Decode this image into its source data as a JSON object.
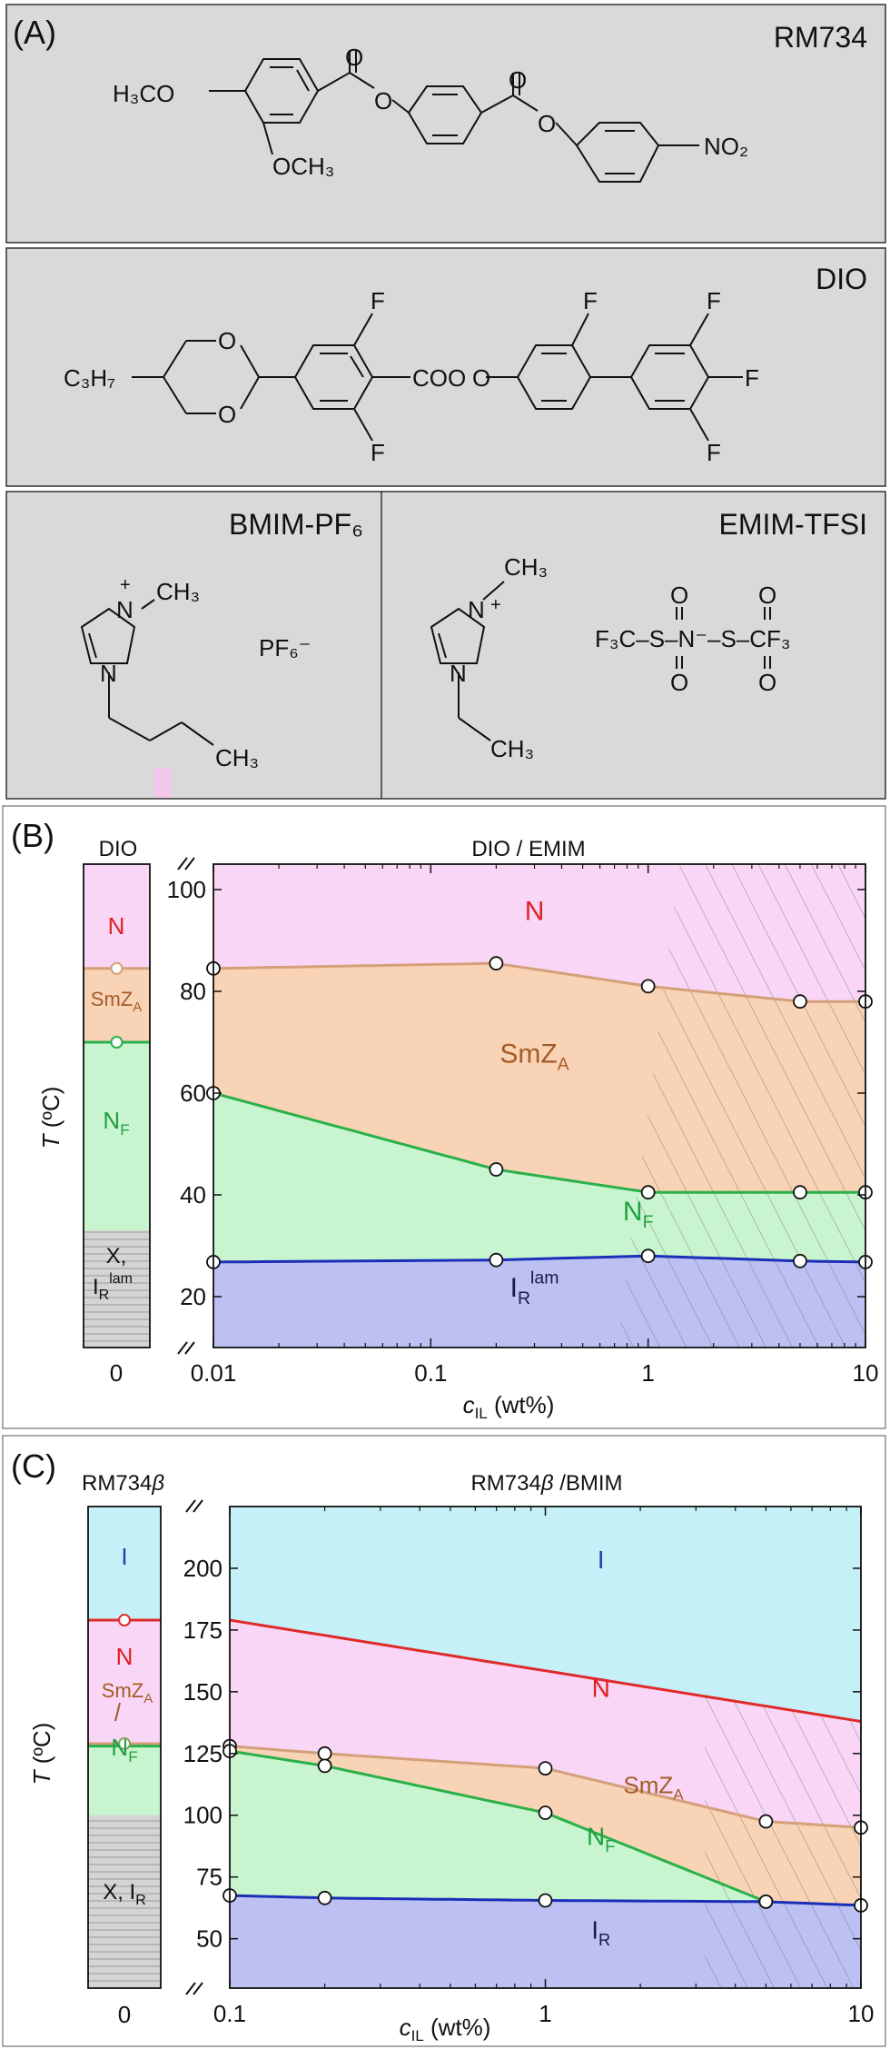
{
  "panelA": {
    "label": "(A)",
    "rm734": {
      "title": "RM734",
      "h3co": "H₃CO",
      "och3": "OCH₃",
      "o": "O",
      "no2": "NO₂"
    },
    "dio": {
      "title": "DIO",
      "c3h7": "C₃H₇",
      "o": "O",
      "f": "F",
      "coo": "COO"
    },
    "bmim": {
      "title": "BMIM-PF₆",
      "ch3": "CH₃",
      "n_plus": "N",
      "n": "N",
      "plus": "+",
      "pf6": "PF₆⁻"
    },
    "emim": {
      "title": "EMIM-TFSI",
      "ch3": "CH₃",
      "n_plus": "N",
      "n": "N",
      "plus": "+",
      "anion_left": "F₃C–S–N⁻–S–CF₃",
      "o": "O",
      "s": "S"
    }
  },
  "panelB": {
    "label": "(B)",
    "left_title": "DIO",
    "right_title": "DIO / EMIM",
    "ylabel": "T (°C)",
    "xlabel": "c_IL (wt%)",
    "left_x_tick": "0",
    "pure_phases": [
      "N",
      "SmZ_A",
      "N_F",
      "X, I_R^lam"
    ],
    "colors": {
      "N": "#f9d6f5",
      "SmZA": "#f9d3b5",
      "NF": "#c8f5cf",
      "IR": "#bcc0f3",
      "X": "#d8d8d8",
      "N_label": "#e02020",
      "SmZA_label": "#a35c28",
      "NF_label": "#20a040",
      "IR_label": "#1a1a4a"
    }
  },
  "panelC": {
    "label": "(C)",
    "left_title": "RM734β",
    "right_title": "RM734β /BMIM",
    "ylabel": "T (°C)",
    "xlabel": "c_IL (wt%)",
    "left_x_tick": "0",
    "pure_phases": [
      "I",
      "N",
      "SmZ_A",
      "N_F",
      "X, I_R"
    ],
    "colors": {
      "I": "#c5f0f8",
      "N": "#f9d6f5",
      "SmZA": "#f9d3b5",
      "NF": "#c8f5cf",
      "IR": "#bcc0f3",
      "X": "#d8d8d8",
      "I_label": "#2040b0",
      "N_label": "#e02020",
      "SmZA_label": "#a35c28",
      "NF_label": "#20a040",
      "IR_label": "#1a1a4a"
    }
  },
  "chart_data": [
    {
      "type": "area",
      "panel": "B",
      "x_scale": "log",
      "xlim": [
        0.01,
        10
      ],
      "ylim": [
        10,
        105
      ],
      "yticks": [
        20,
        40,
        60,
        80,
        100
      ],
      "xticks": [
        "0.01",
        "0.1",
        "1",
        "10"
      ],
      "xlabel": "c_IL (wt%)",
      "ylabel": "T (°C)",
      "pure_DIO": {
        "N_SmZA": 84.5,
        "SmZA_NF": 70,
        "NF_X": 33
      },
      "series": [
        {
          "name": "N–SmZ_A",
          "color": "#d4a07a",
          "x": [
            0.01,
            0.2,
            1,
            5,
            10
          ],
          "y": [
            84.5,
            85.5,
            81,
            78,
            78
          ]
        },
        {
          "name": "SmZ_A–N_F",
          "color": "#2bb04a",
          "x": [
            0.01,
            0.2,
            1,
            5,
            10
          ],
          "y": [
            60,
            45,
            40.5,
            40.5,
            40.5
          ]
        },
        {
          "name": "N_F–I_R^lam",
          "color": "#1a2fb8",
          "x": [
            0.01,
            0.2,
            1,
            5,
            10
          ],
          "y": [
            26.8,
            27.2,
            28,
            27,
            26.8
          ]
        }
      ],
      "phase_labels": [
        {
          "text": "N",
          "x": 0.3,
          "y": 94
        },
        {
          "text": "SmZ_A",
          "x": 0.3,
          "y": 66
        },
        {
          "text": "N_F",
          "x": 0.9,
          "y": 35
        },
        {
          "text": "I_R^lam",
          "x": 0.3,
          "y": 20
        }
      ]
    },
    {
      "type": "area",
      "panel": "C",
      "x_scale": "log",
      "xlim": [
        0.1,
        10
      ],
      "ylim": [
        30,
        225
      ],
      "yticks": [
        50,
        75,
        100,
        125,
        150,
        175,
        200
      ],
      "xticks": [
        "0.1",
        "1",
        "10"
      ],
      "xlabel": "c_IL (wt%)",
      "ylabel": "T (°C)",
      "pure_RM734beta": {
        "I_N": 179,
        "N_SmZA": 129,
        "SmZA_NF": 128,
        "NF_X": 100
      },
      "series": [
        {
          "name": "I–N",
          "color": "#e02a2a",
          "x": [
            0.1,
            10
          ],
          "y": [
            179,
            138
          ]
        },
        {
          "name": "N–SmZ_A",
          "color": "#d4a07a",
          "x": [
            0.1,
            0.2,
            1,
            5,
            10
          ],
          "y": [
            128,
            125,
            119,
            97.5,
            95
          ]
        },
        {
          "name": "SmZ_A–N_F",
          "color": "#2bb04a",
          "x": [
            0.1,
            0.2,
            1,
            5
          ],
          "y": [
            126,
            120,
            101,
            65
          ]
        },
        {
          "name": "N_F–I_R",
          "color": "#1a2fb8",
          "x": [
            0.1,
            0.2,
            1,
            5,
            10
          ],
          "y": [
            67.5,
            66.5,
            65.5,
            65,
            63.5
          ]
        }
      ],
      "phase_labels": [
        {
          "text": "I",
          "x": 1.5,
          "y": 200
        },
        {
          "text": "N",
          "x": 1.5,
          "y": 148
        },
        {
          "text": "SmZ_A",
          "x": 2.2,
          "y": 109
        },
        {
          "text": "N_F",
          "x": 1.5,
          "y": 88
        },
        {
          "text": "I_R",
          "x": 1.5,
          "y": 50
        }
      ]
    }
  ]
}
